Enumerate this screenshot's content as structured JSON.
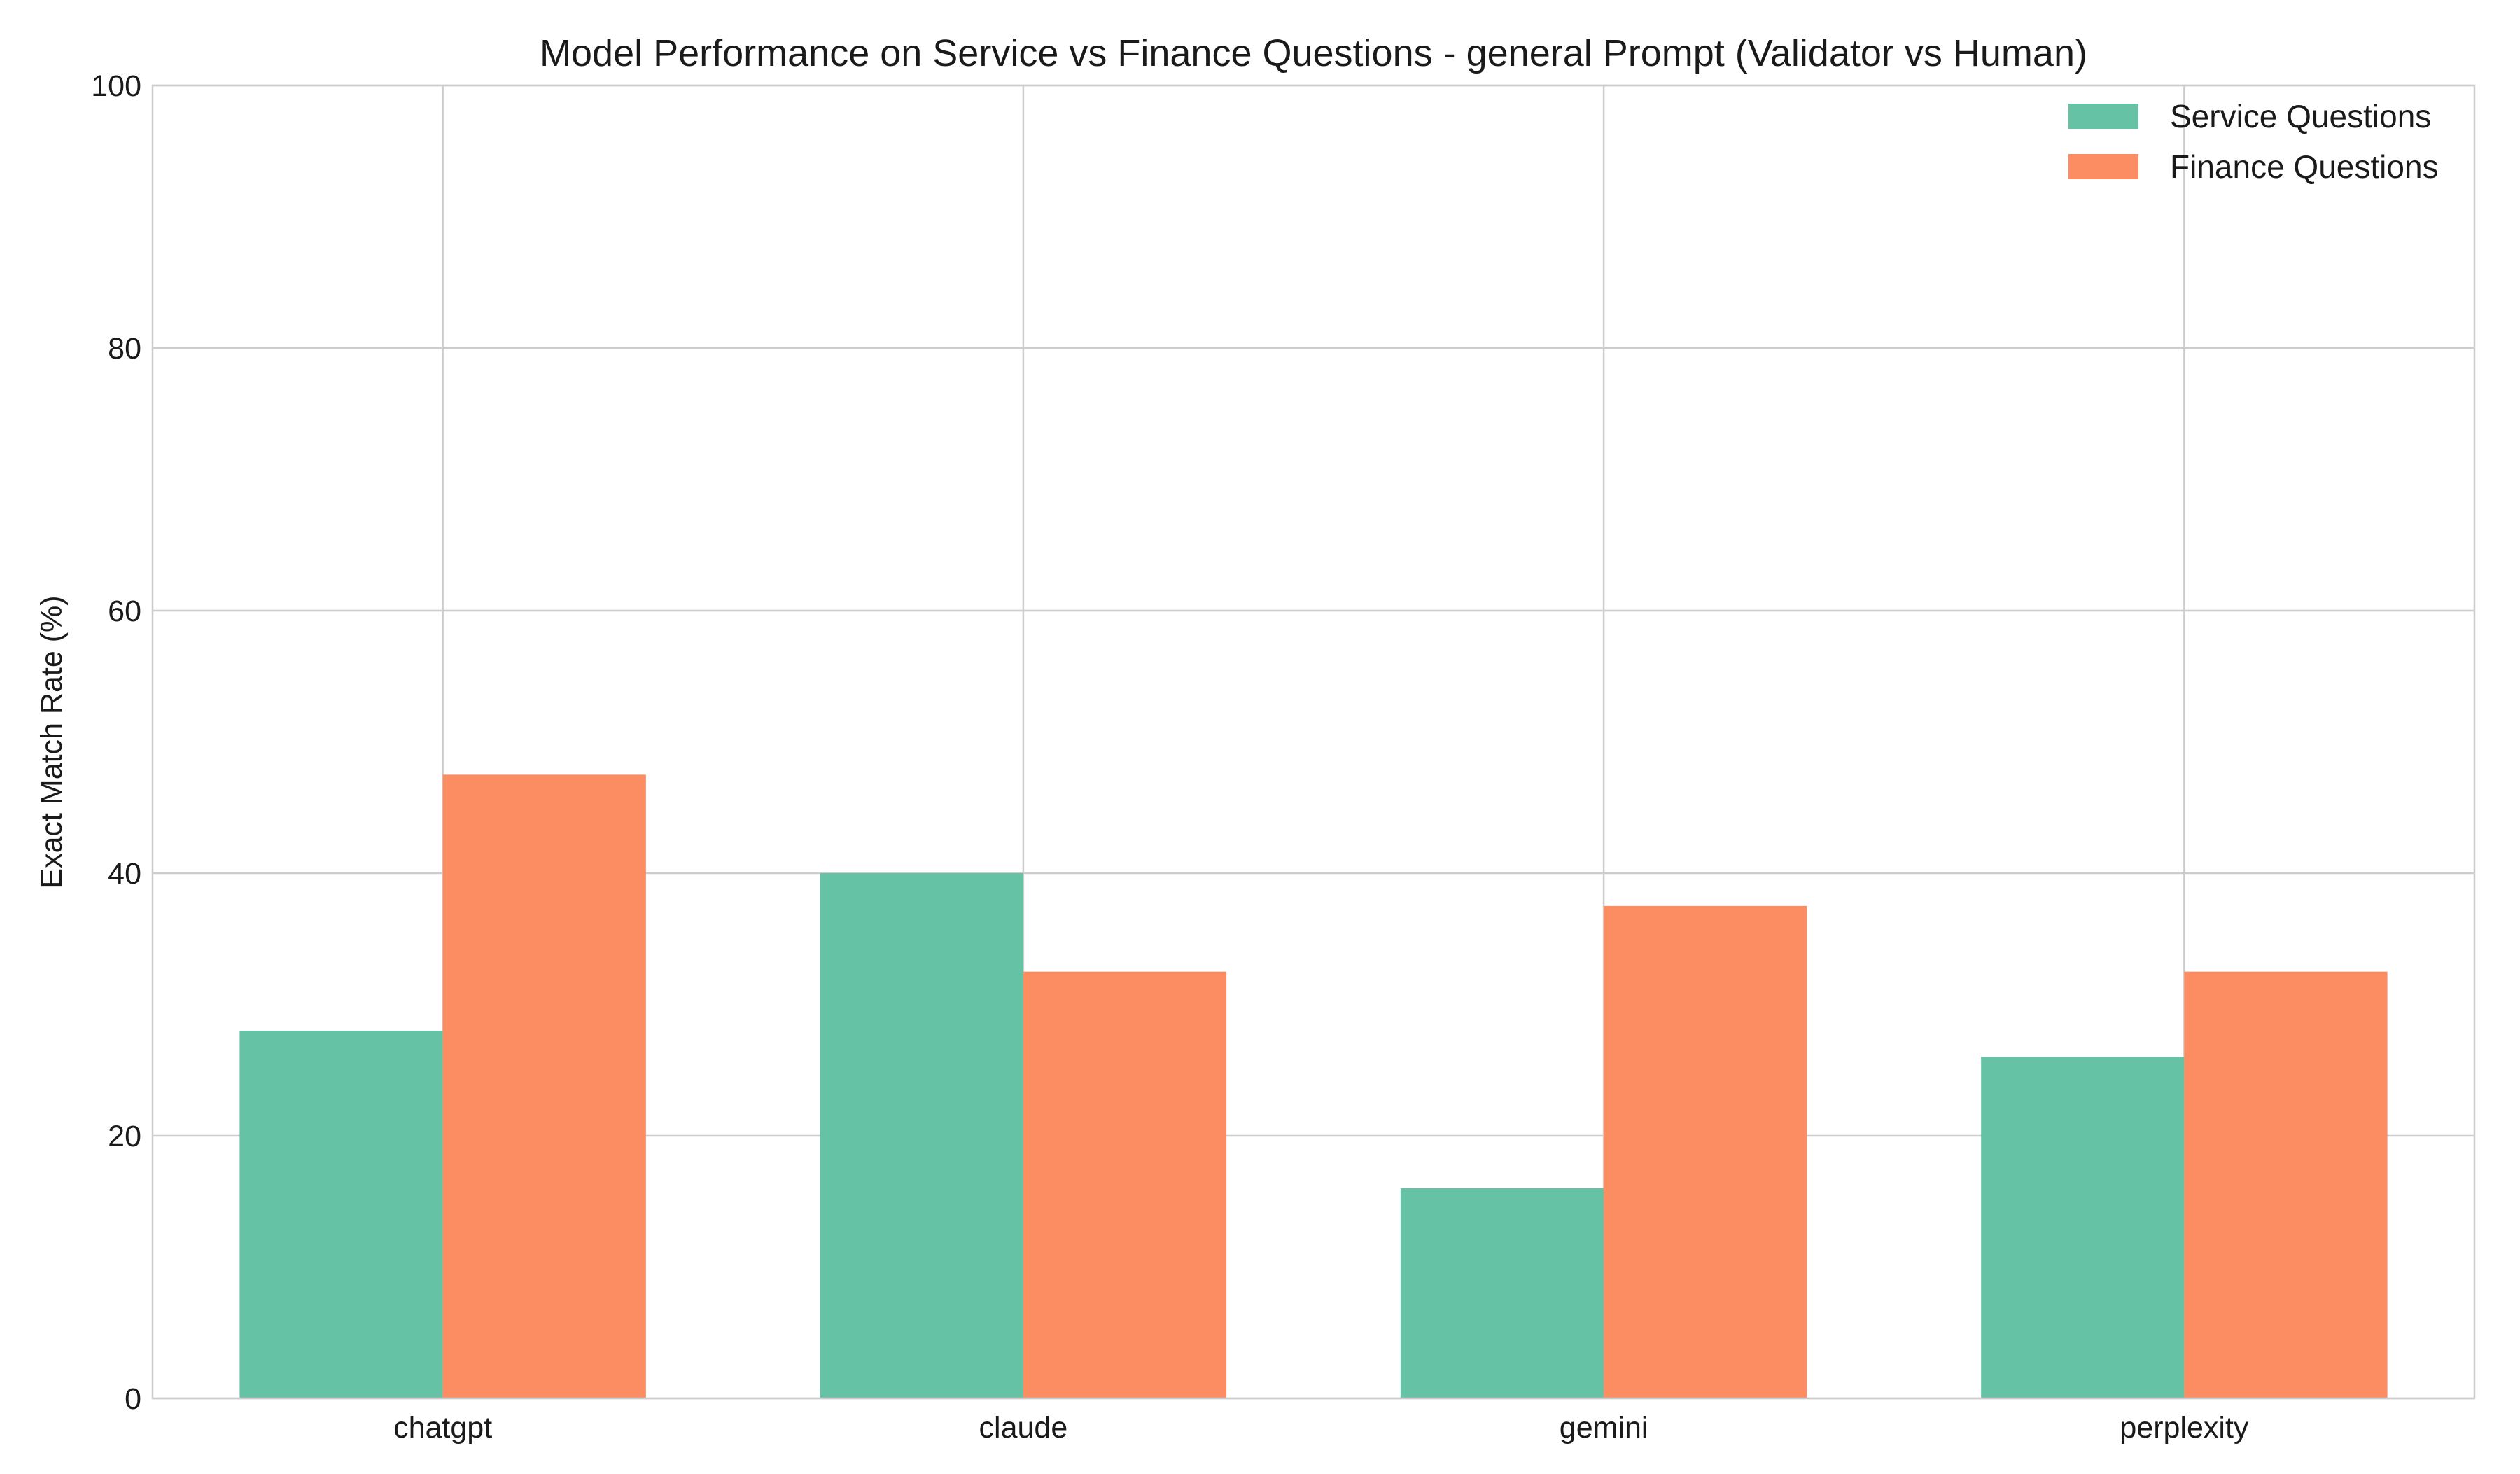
{
  "chart_data": {
    "type": "bar",
    "title": "Model Performance on Service vs Finance Questions - general Prompt (Validator vs Human)",
    "xlabel": "",
    "ylabel": "Exact Match Rate (%)",
    "categories": [
      "chatgpt",
      "claude",
      "gemini",
      "perplexity"
    ],
    "series": [
      {
        "name": "Service Questions",
        "color": "#66c2a5",
        "values": [
          28,
          40,
          16,
          26
        ]
      },
      {
        "name": "Finance Questions",
        "color": "#fc8d62",
        "values": [
          47.5,
          32.5,
          37.5,
          32.5
        ]
      }
    ],
    "ylim": [
      0,
      100
    ],
    "yticks": [
      0,
      20,
      40,
      60,
      80,
      100
    ],
    "grid": true,
    "legend_position": "top-right"
  }
}
